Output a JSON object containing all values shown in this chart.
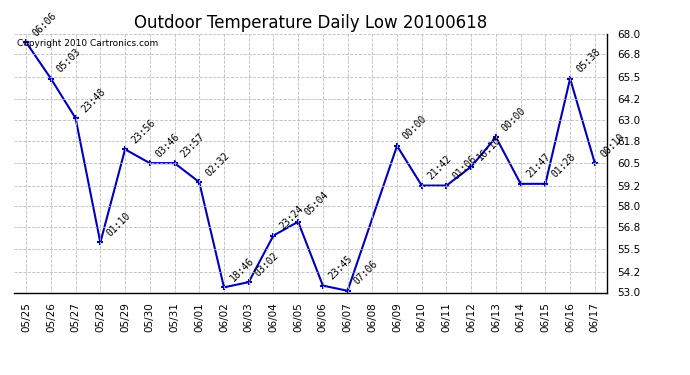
{
  "title": "Outdoor Temperature Daily Low 20100618",
  "copyright": "Copyright 2010 Cartronics.com",
  "x_labels": [
    "05/25",
    "05/26",
    "05/27",
    "05/28",
    "05/29",
    "05/30",
    "05/31",
    "06/01",
    "06/02",
    "06/03",
    "06/04",
    "06/05",
    "06/06",
    "06/07",
    "06/08",
    "06/09",
    "06/10",
    "06/11",
    "06/12",
    "06/13",
    "06/14",
    "06/15",
    "06/16",
    "06/17"
  ],
  "y_values": [
    67.5,
    65.4,
    63.1,
    55.9,
    61.3,
    60.5,
    60.5,
    59.4,
    53.3,
    53.6,
    56.3,
    57.1,
    53.4,
    53.1,
    61.5,
    59.2,
    59.2,
    60.3,
    62.0,
    59.3,
    59.3,
    65.4,
    60.5
  ],
  "point_labels": [
    "06:06",
    "05:03",
    "23:48",
    "01:10",
    "23:56",
    "03:46",
    "23:57",
    "02:32",
    "18:46",
    "03:02",
    "23:24",
    "05:04",
    "23:45",
    "07:06",
    "00:00",
    "21:42",
    "01:06",
    "16:10",
    "00:00",
    "21:47",
    "01:28",
    "05:38",
    "00:10"
  ],
  "x_positions_data": [
    0,
    1,
    2,
    3,
    4,
    5,
    6,
    7,
    8,
    9,
    10,
    11,
    12,
    13,
    15,
    16,
    17,
    18,
    19,
    20,
    21,
    22,
    23
  ],
  "ylim": [
    53.0,
    68.0
  ],
  "yticks": [
    53.0,
    54.2,
    55.5,
    56.8,
    58.0,
    59.2,
    60.5,
    61.8,
    63.0,
    64.2,
    65.5,
    66.8,
    68.0
  ],
  "line_color": "#0000bb",
  "marker_color": "#0000bb",
  "bg_color": "#ffffff",
  "grid_color": "#bbbbbb",
  "title_fontsize": 12,
  "label_fontsize": 7.5,
  "point_label_fontsize": 7.0,
  "copyright_fontsize": 6.5
}
